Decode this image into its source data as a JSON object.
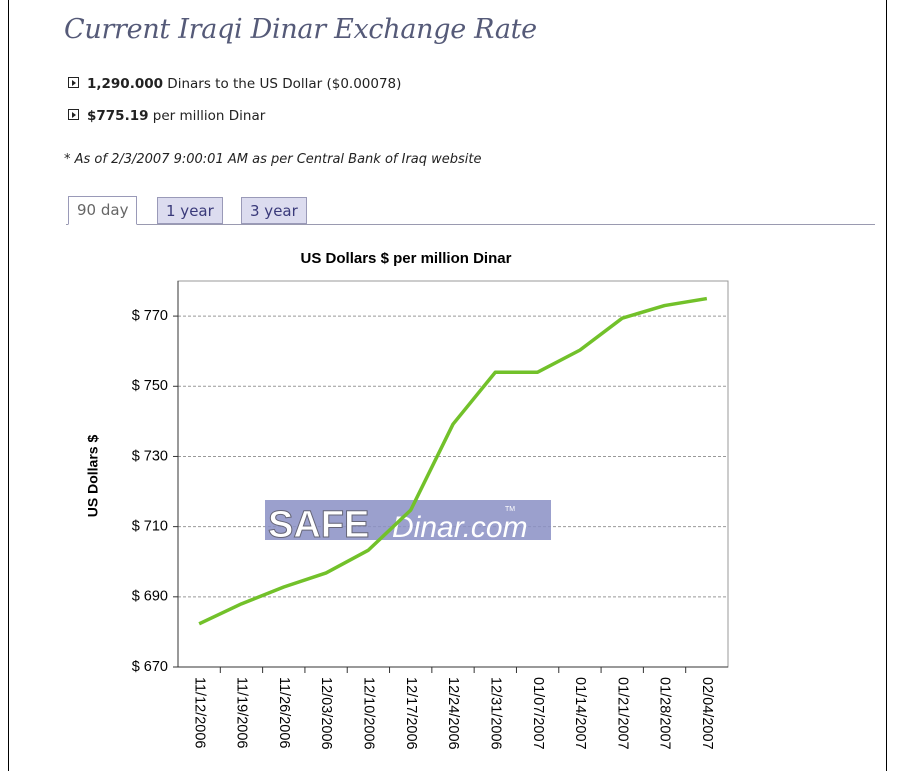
{
  "header": {
    "title": "Current Iraqi Dinar Exchange Rate"
  },
  "rates": [
    {
      "amount": "1,290.000",
      "text": " Dinars to the US Dollar ($0.00078)"
    },
    {
      "amount": "$775.19",
      "text": " per million Dinar"
    }
  ],
  "note": "* As of 2/3/2007 9:00:01 AM as per Central Bank of Iraq website",
  "tabs": [
    "90 day",
    "1 year",
    "3 year"
  ],
  "watermark": [
    "SAFE",
    "Dinar.com",
    "TM"
  ],
  "chart_data": {
    "type": "line",
    "title": "US Dollars $ per million Dinar",
    "y_label": "US Dollars $",
    "categories": [
      "11/12/2006",
      "11/19/2006",
      "11/26/2006",
      "12/03/2006",
      "12/10/2006",
      "12/17/2006",
      "12/24/2006",
      "12/31/2006",
      "01/07/2007",
      "01/14/2007",
      "01/21/2007",
      "01/28/2007",
      "02/04/2007"
    ],
    "series": [
      {
        "name": "US Dollars $ per million Dinar",
        "color": "#72c12a",
        "values": [
          682.3,
          688,
          692.8,
          696.8,
          703.3,
          714.7,
          739.2,
          754,
          754,
          760.3,
          769.4,
          773,
          775
        ]
      }
    ],
    "ylim": [
      670,
      780
    ],
    "yticks": [
      {
        "value": 670,
        "label": "$ 670"
      },
      {
        "value": 690,
        "label": "$ 690"
      },
      {
        "value": 710,
        "label": "$ 710"
      },
      {
        "value": 730,
        "label": "$ 730"
      },
      {
        "value": 750,
        "label": "$ 750"
      },
      {
        "value": 770,
        "label": "$ 770"
      }
    ],
    "grid": true
  }
}
